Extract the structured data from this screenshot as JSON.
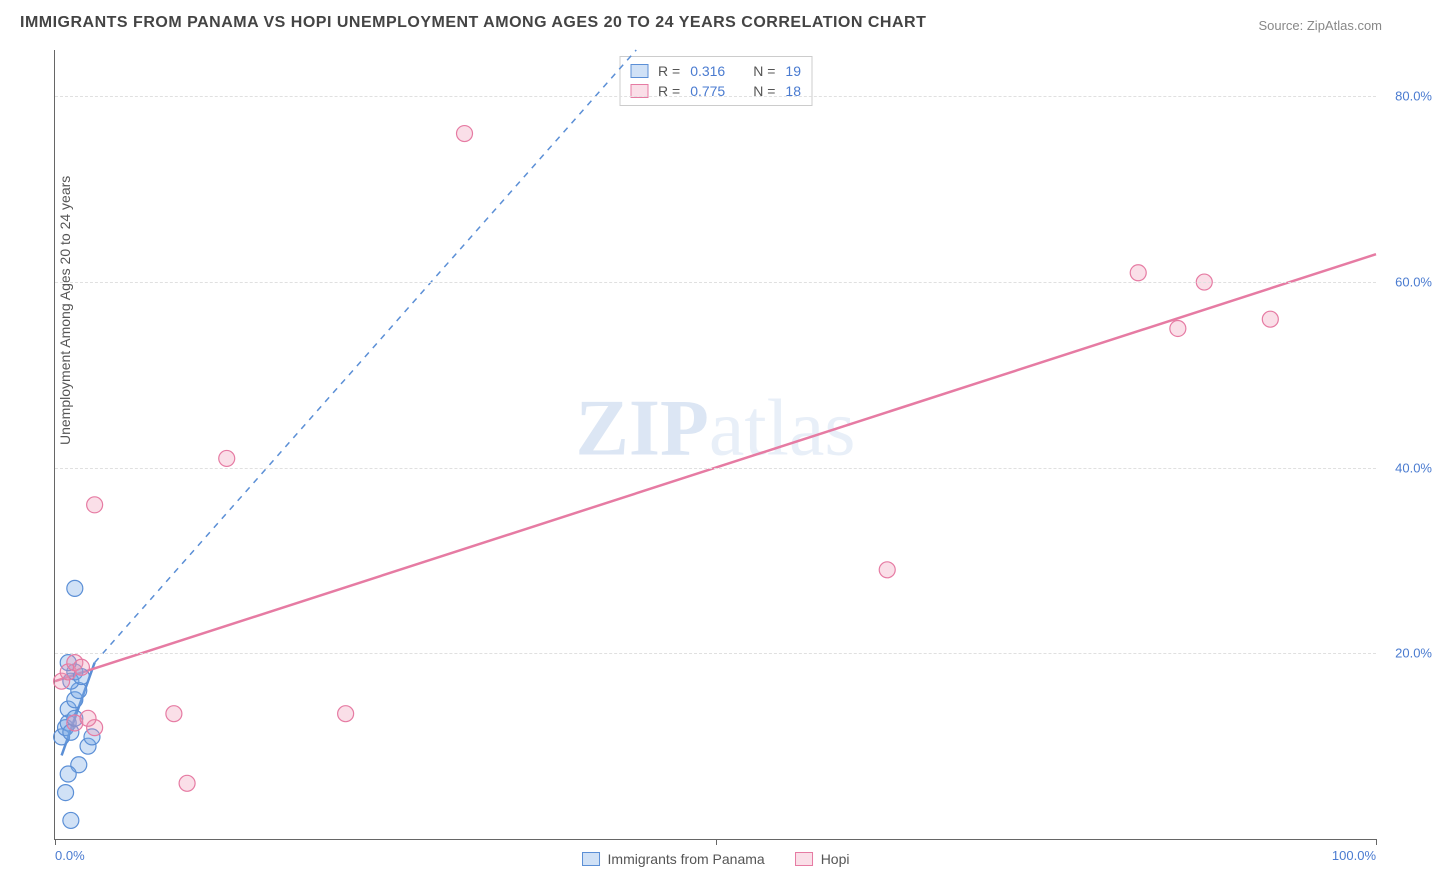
{
  "title": "IMMIGRANTS FROM PANAMA VS HOPI UNEMPLOYMENT AMONG AGES 20 TO 24 YEARS CORRELATION CHART",
  "source": "Source: ZipAtlas.com",
  "watermark_bold": "ZIP",
  "watermark_light": "atlas",
  "chart": {
    "type": "scatter",
    "ylabel": "Unemployment Among Ages 20 to 24 years",
    "xlim": [
      0,
      100
    ],
    "ylim": [
      0,
      85
    ],
    "xtick_labels": {
      "left": "0.0%",
      "right": "100.0%"
    },
    "xtick_positions": [
      0,
      50,
      100
    ],
    "yticks": [
      20,
      40,
      60,
      80
    ],
    "ytick_labels": [
      "20.0%",
      "40.0%",
      "60.0%",
      "80.0%"
    ],
    "background_color": "#ffffff",
    "grid_color": "#e0e0e0",
    "axis_color": "#666666",
    "label_fontsize": 14,
    "tick_color": "#4a7bd0",
    "marker_radius": 8,
    "marker_stroke_width": 1.2,
    "trend_stroke_width": 2.5
  },
  "series": {
    "panama": {
      "label": "Immigrants from Panama",
      "fill": "rgba(120,170,230,0.35)",
      "stroke": "#5b8fd6",
      "r_value": "0.316",
      "n_value": "19",
      "points": [
        [
          0.5,
          11
        ],
        [
          0.8,
          12
        ],
        [
          1.0,
          12.5
        ],
        [
          1.2,
          11.5
        ],
        [
          1.0,
          14
        ],
        [
          1.5,
          13
        ],
        [
          1.5,
          15
        ],
        [
          1.8,
          16
        ],
        [
          1.2,
          17
        ],
        [
          1.5,
          18
        ],
        [
          2.0,
          17.5
        ],
        [
          1.0,
          19
        ],
        [
          2.5,
          10
        ],
        [
          1.8,
          8
        ],
        [
          1.0,
          7
        ],
        [
          0.8,
          5
        ],
        [
          1.2,
          2
        ],
        [
          1.5,
          27
        ],
        [
          2.8,
          11
        ]
      ],
      "trend": {
        "x1": 0.5,
        "y1": 9,
        "x2": 3.0,
        "y2": 19,
        "dash": false
      },
      "extrapolation": {
        "x1": 3.0,
        "y1": 19,
        "x2": 44,
        "y2": 85,
        "dash": true
      }
    },
    "hopi": {
      "label": "Hopi",
      "fill": "rgba(240,150,180,0.30)",
      "stroke": "#e67ba3",
      "r_value": "0.775",
      "n_value": "18",
      "points": [
        [
          0.5,
          17
        ],
        [
          1.0,
          18
        ],
        [
          1.5,
          19
        ],
        [
          2.0,
          18.5
        ],
        [
          1.5,
          12.5
        ],
        [
          3.0,
          12
        ],
        [
          2.5,
          13
        ],
        [
          9,
          13.5
        ],
        [
          22,
          13.5
        ],
        [
          10,
          6
        ],
        [
          3,
          36
        ],
        [
          13,
          41
        ],
        [
          31,
          76
        ],
        [
          63,
          29
        ],
        [
          85,
          55
        ],
        [
          82,
          61
        ],
        [
          87,
          60
        ],
        [
          92,
          56
        ]
      ],
      "trend": {
        "x1": 0,
        "y1": 17,
        "x2": 100,
        "y2": 63,
        "dash": false
      }
    }
  },
  "legend_top": {
    "r_label": "R =",
    "n_label": "N ="
  }
}
